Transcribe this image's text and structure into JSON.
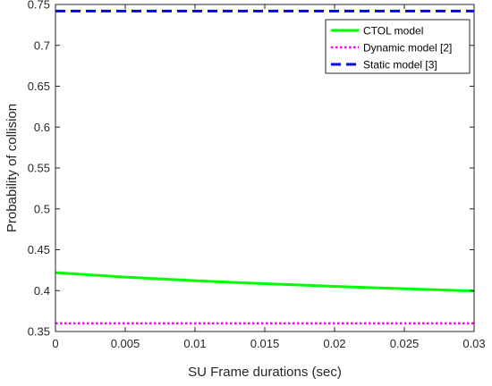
{
  "chart_data": {
    "type": "line",
    "title": "",
    "xlabel": "SU Frame durations (sec)",
    "ylabel": "Probability of collision",
    "xlim": [
      0,
      0.03
    ],
    "ylim": [
      0.35,
      0.75
    ],
    "xticks": [
      0,
      0.005,
      0.01,
      0.015,
      0.02,
      0.025,
      0.03
    ],
    "xtick_labels": [
      "0",
      "0.005",
      "0.01",
      "0.015",
      "0.02",
      "0.025",
      "0.03"
    ],
    "yticks": [
      0.35,
      0.4,
      0.45,
      0.5,
      0.55,
      0.6,
      0.65,
      0.7,
      0.75
    ],
    "ytick_labels": [
      "0.35",
      "0.4",
      "0.45",
      "0.5",
      "0.55",
      "0.6",
      "0.65",
      "0.7",
      "0.75"
    ],
    "grid": false,
    "legend_position": "top-right",
    "series": [
      {
        "name": "CTOL model",
        "color": "#00ff00",
        "style": "solid",
        "x": [
          0,
          0.0025,
          0.005,
          0.0075,
          0.01,
          0.0125,
          0.015,
          0.0175,
          0.02,
          0.0225,
          0.025,
          0.0275,
          0.03
        ],
        "y": [
          0.422,
          0.4192,
          0.4165,
          0.4143,
          0.4122,
          0.4103,
          0.4085,
          0.4068,
          0.4052,
          0.4037,
          0.4023,
          0.4009,
          0.3996
        ]
      },
      {
        "name": "Dynamic model [2]",
        "color": "#ff00ff",
        "style": "dotted",
        "x": [
          0,
          0.03
        ],
        "y": [
          0.36,
          0.36
        ]
      },
      {
        "name": "Static model [3]",
        "color": "#0000ff",
        "style": "dashed",
        "x": [
          0,
          0.03
        ],
        "y": [
          0.742,
          0.742
        ]
      }
    ]
  }
}
